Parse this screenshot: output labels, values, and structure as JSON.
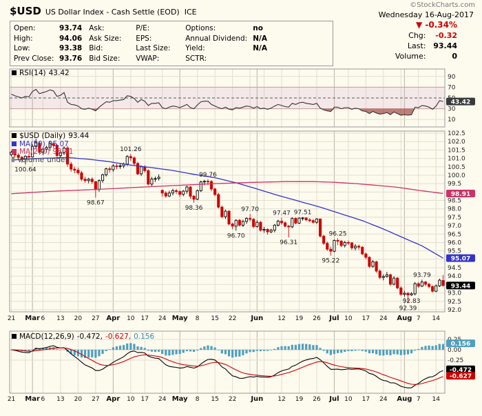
{
  "header": {
    "symbol": "$USD",
    "title": "US Dollar Index - Cash Settle (EOD)",
    "exchange": "ICE",
    "watermark": "©StockCharts.com",
    "date": "Wednesday 16-Aug-2017"
  },
  "quote": {
    "open": {
      "label": "Open:",
      "value": "93.74"
    },
    "high": {
      "label": "High:",
      "value": "94.06"
    },
    "low": {
      "label": "Low:",
      "value": "93.38"
    },
    "prev_close": {
      "label": "Prev Close:",
      "value": "93.76"
    },
    "ask": {
      "label": "Ask:",
      "value": ""
    },
    "ask_size": {
      "label": "Ask Size:",
      "value": ""
    },
    "bid": {
      "label": "Bid:",
      "value": ""
    },
    "bid_size": {
      "label": "Bid Size:",
      "value": ""
    },
    "pe": {
      "label": "P/E:",
      "value": ""
    },
    "eps": {
      "label": "EPS:",
      "value": ""
    },
    "last_size": {
      "label": "Last Size:",
      "value": ""
    },
    "vwap": {
      "label": "VWAP:",
      "value": ""
    },
    "options": {
      "label": "Options:",
      "value": "no"
    },
    "annual_dividend": {
      "label": "Annual Dividend:",
      "value": "N/A"
    },
    "yield": {
      "label": "Yield:",
      "value": "N/A"
    },
    "sctr": {
      "label": "SCTR:",
      "value": ""
    }
  },
  "summary": {
    "arrow": "▼",
    "pct": "-0.34%",
    "chg_label": "Chg:",
    "chg_value": "-0.32",
    "last_label": "Last:",
    "last_value": "93.44",
    "volume_label": "Volume:",
    "volume_value": "0"
  },
  "legends": {
    "rsi": {
      "label": "RSI(14)",
      "value": "43.42"
    },
    "main": [
      {
        "label": "$USD (Daily)",
        "value": "93.44"
      },
      {
        "label": "MA(50)",
        "value": "95.07"
      },
      {
        "label": "MA(200)",
        "value": "98.91"
      },
      {
        "label": "Volume",
        "value": "undef"
      }
    ],
    "macd": {
      "label": "MACD(12,26,9)",
      "v1": "-0.472,",
      "v2": "-0.627,",
      "v3": "0.156"
    }
  },
  "colors": {
    "background": "#fdfaee",
    "grid": "#e2dfd0",
    "grid_month": "#b9b4a3",
    "border": "#999999",
    "up": "#000000",
    "down": "#cc0000",
    "ma50": "#3333cc",
    "ma200": "#cc3366",
    "rsi_line": "#333333",
    "rsi_band": "rgba(204,153,204,0.18)",
    "rsi_band_edge": "#cc9999",
    "rsi_oversold_fill": "rgba(139,26,26,0.55)",
    "macd_hist": "#4e9fc0",
    "macd_line": "#000000",
    "macd_signal": "#cc0000",
    "axis_text": "#222222",
    "box_text": "#ffffff",
    "neg": "#cc0000"
  },
  "chart_data": {
    "type": "candlestick",
    "symbol": "$USD",
    "frequency": "Daily",
    "last_close": 93.44,
    "price_axis": {
      "min": 92.0,
      "max": 102.5,
      "step": 0.5
    },
    "x_ticks": [
      {
        "i": 0,
        "l": "21"
      },
      {
        "i": 4,
        "l": ""
      },
      {
        "i": 6,
        "l": "Mar",
        "m": 1
      },
      {
        "i": 9,
        "l": "6"
      },
      {
        "i": 14,
        "l": "13"
      },
      {
        "i": 19,
        "l": "20"
      },
      {
        "i": 24,
        "l": "27"
      },
      {
        "i": 29,
        "l": "Apr",
        "m": 1
      },
      {
        "i": 34,
        "l": "10"
      },
      {
        "i": 38,
        "l": "17"
      },
      {
        "i": 43,
        "l": "24"
      },
      {
        "i": 48,
        "l": "May",
        "m": 1
      },
      {
        "i": 53,
        "l": "8"
      },
      {
        "i": 58,
        "l": "15"
      },
      {
        "i": 63,
        "l": "22"
      },
      {
        "i": 68,
        "l": ""
      },
      {
        "i": 70,
        "l": "Jun",
        "m": 1
      },
      {
        "i": 72,
        "l": ""
      },
      {
        "i": 77,
        "l": "12"
      },
      {
        "i": 82,
        "l": "19"
      },
      {
        "i": 87,
        "l": "26"
      },
      {
        "i": 92,
        "l": "Jul",
        "m": 1
      },
      {
        "i": 96,
        "l": "10"
      },
      {
        "i": 101,
        "l": "17"
      },
      {
        "i": 106,
        "l": "24"
      },
      {
        "i": 111,
        "l": ""
      },
      {
        "i": 112,
        "l": "Aug",
        "m": 1
      },
      {
        "i": 116,
        "l": "7"
      },
      {
        "i": 121,
        "l": "14"
      }
    ],
    "candles": [
      [
        101.22,
        101.45,
        101.12,
        101.37
      ],
      [
        101.37,
        101.44,
        101.05,
        101.2
      ],
      [
        101.2,
        101.33,
        100.92,
        101.06
      ],
      [
        101.06,
        101.14,
        100.75,
        100.98
      ],
      [
        100.98,
        101.2,
        100.64,
        101.12
      ],
      [
        101.12,
        101.3,
        100.86,
        101.09
      ],
      [
        101.09,
        101.85,
        101.05,
        101.71
      ],
      [
        101.71,
        102.17,
        101.55,
        101.97
      ],
      [
        101.9,
        102.0,
        101.22,
        101.37
      ],
      [
        101.37,
        101.65,
        101.18,
        101.55
      ],
      [
        101.55,
        101.75,
        101.35,
        101.65
      ],
      [
        101.65,
        102.0,
        101.45,
        101.87
      ],
      [
        101.87,
        101.95,
        101.6,
        101.77
      ],
      [
        101.77,
        101.85,
        100.95,
        101.17
      ],
      [
        101.17,
        101.45,
        101.05,
        101.35
      ],
      [
        101.35,
        101.72,
        101.2,
        101.62
      ],
      [
        101.62,
        101.75,
        100.5,
        100.66
      ],
      [
        100.66,
        100.8,
        100.2,
        100.36
      ],
      [
        100.36,
        100.5,
        100.12,
        100.3
      ],
      [
        100.3,
        100.45,
        100.02,
        100.14
      ],
      [
        100.14,
        100.25,
        99.65,
        99.76
      ],
      [
        99.76,
        99.92,
        99.55,
        99.68
      ],
      [
        99.68,
        99.85,
        99.52,
        99.76
      ],
      [
        99.76,
        99.88,
        99.48,
        99.62
      ],
      [
        99.62,
        99.65,
        98.67,
        99.15
      ],
      [
        99.15,
        99.75,
        99.02,
        99.68
      ],
      [
        99.68,
        100.1,
        99.55,
        100.02
      ],
      [
        100.02,
        100.45,
        99.92,
        100.38
      ],
      [
        100.38,
        100.5,
        100.15,
        100.33
      ],
      [
        100.33,
        100.65,
        100.2,
        100.55
      ],
      [
        100.55,
        100.68,
        100.35,
        100.52
      ],
      [
        100.52,
        100.72,
        100.38,
        100.56
      ],
      [
        100.56,
        100.75,
        100.42,
        100.66
      ],
      [
        100.66,
        101.2,
        100.55,
        101.11
      ],
      [
        101.11,
        101.26,
        100.85,
        101.03
      ],
      [
        101.03,
        101.12,
        100.55,
        100.7
      ],
      [
        100.7,
        100.8,
        100.0,
        100.08
      ],
      [
        100.08,
        100.58,
        99.95,
        100.5
      ],
      [
        100.5,
        100.6,
        100.15,
        100.27
      ],
      [
        100.27,
        100.35,
        99.4,
        99.47
      ],
      [
        99.47,
        99.9,
        99.35,
        99.77
      ],
      [
        99.77,
        99.92,
        99.6,
        99.8
      ],
      [
        99.8,
        100.05,
        99.68,
        99.88
      ],
      [
        99.1,
        99.15,
        98.72,
        98.94
      ],
      [
        98.94,
        99.05,
        98.66,
        98.76
      ],
      [
        98.76,
        99.08,
        98.7,
        98.94
      ],
      [
        98.94,
        99.2,
        98.8,
        99.08
      ],
      [
        99.08,
        99.18,
        98.88,
        99.03
      ],
      [
        99.03,
        99.1,
        98.72,
        98.86
      ],
      [
        98.86,
        99.12,
        98.75,
        99.05
      ],
      [
        99.05,
        99.38,
        98.9,
        99.3
      ],
      [
        99.3,
        99.35,
        98.6,
        98.75
      ],
      [
        98.75,
        98.82,
        98.36,
        98.57
      ],
      [
        98.57,
        99.15,
        98.52,
        99.08
      ],
      [
        99.08,
        99.68,
        99.0,
        99.6
      ],
      [
        99.6,
        99.72,
        99.4,
        99.64
      ],
      [
        99.64,
        99.76,
        99.42,
        99.63
      ],
      [
        99.63,
        99.7,
        99.05,
        99.18
      ],
      [
        99.18,
        99.25,
        98.75,
        98.85
      ],
      [
        98.85,
        98.95,
        98.02,
        98.1
      ],
      [
        98.1,
        98.2,
        97.45,
        97.53
      ],
      [
        97.53,
        97.95,
        97.4,
        97.86
      ],
      [
        97.86,
        97.92,
        97.02,
        97.1
      ],
      [
        97.1,
        97.18,
        96.78,
        96.97
      ],
      [
        96.97,
        97.38,
        96.7,
        97.32
      ],
      [
        97.32,
        97.4,
        96.95,
        97.03
      ],
      [
        97.03,
        97.35,
        96.92,
        97.25
      ],
      [
        97.25,
        97.5,
        97.1,
        97.43
      ],
      [
        97.43,
        97.7,
        97.25,
        97.38
      ],
      [
        97.38,
        97.45,
        96.85,
        96.95
      ],
      [
        96.95,
        97.32,
        96.88,
        97.2
      ],
      [
        97.2,
        97.28,
        96.65,
        96.73
      ],
      [
        96.73,
        96.92,
        96.58,
        96.78
      ],
      [
        96.78,
        96.85,
        96.46,
        96.63
      ],
      [
        96.63,
        96.82,
        96.55,
        96.73
      ],
      [
        96.73,
        97.1,
        96.6,
        97.03
      ],
      [
        97.03,
        97.35,
        96.95,
        97.27
      ],
      [
        97.27,
        97.47,
        97.05,
        97.17
      ],
      [
        97.17,
        97.25,
        96.9,
        96.97
      ],
      [
        96.97,
        97.05,
        96.31,
        96.93
      ],
      [
        96.93,
        97.5,
        96.85,
        97.43
      ],
      [
        97.43,
        97.5,
        97.08,
        97.15
      ],
      [
        97.15,
        97.5,
        97.1,
        97.45
      ],
      [
        97.45,
        97.51,
        97.3,
        97.46
      ],
      [
        97.46,
        97.5,
        97.25,
        97.35
      ],
      [
        97.35,
        97.45,
        97.2,
        97.3
      ],
      [
        97.3,
        97.4,
        97.12,
        97.2
      ],
      [
        97.2,
        97.45,
        97.1,
        97.4
      ],
      [
        97.4,
        97.42,
        96.3,
        96.38
      ],
      [
        96.38,
        96.45,
        95.85,
        95.95
      ],
      [
        95.95,
        96.05,
        95.5,
        95.6
      ],
      [
        95.6,
        95.75,
        95.22,
        95.48
      ],
      [
        95.48,
        96.18,
        95.42,
        96.12
      ],
      [
        96.12,
        96.25,
        95.85,
        96.08
      ],
      [
        96.08,
        96.15,
        95.72,
        95.82
      ],
      [
        95.82,
        96.1,
        95.7,
        96.0
      ],
      [
        96.0,
        96.12,
        95.85,
        95.98
      ],
      [
        95.98,
        96.02,
        95.55,
        95.68
      ],
      [
        95.68,
        95.9,
        95.52,
        95.78
      ],
      [
        95.78,
        95.88,
        95.55,
        95.72
      ],
      [
        95.72,
        95.78,
        95.25,
        95.32
      ],
      [
        95.32,
        95.4,
        95.0,
        95.12
      ],
      [
        95.12,
        95.18,
        94.48,
        94.58
      ],
      [
        94.58,
        94.95,
        94.5,
        94.85
      ],
      [
        94.85,
        94.92,
        94.2,
        94.3
      ],
      [
        94.3,
        94.4,
        93.82,
        93.92
      ],
      [
        93.92,
        94.1,
        93.75,
        93.98
      ],
      [
        93.98,
        94.25,
        93.9,
        94.08
      ],
      [
        94.08,
        94.15,
        93.42,
        93.52
      ],
      [
        93.52,
        94.0,
        93.45,
        93.88
      ],
      [
        93.88,
        93.95,
        93.22,
        93.3
      ],
      [
        93.3,
        93.4,
        92.82,
        92.92
      ],
      [
        92.92,
        93.12,
        92.78,
        92.98
      ],
      [
        92.98,
        93.05,
        92.39,
        92.88
      ],
      [
        92.88,
        93.05,
        92.83,
        92.95
      ],
      [
        92.95,
        93.65,
        92.85,
        93.55
      ],
      [
        93.55,
        93.65,
        93.3,
        93.4
      ],
      [
        93.4,
        93.79,
        93.35,
        93.65
      ],
      [
        93.65,
        93.72,
        93.4,
        93.52
      ],
      [
        93.52,
        93.6,
        93.28,
        93.38
      ],
      [
        93.38,
        93.45,
        93.02,
        93.1
      ],
      [
        93.1,
        93.5,
        93.05,
        93.42
      ],
      [
        93.42,
        93.85,
        93.35,
        93.76
      ],
      [
        93.74,
        94.06,
        93.38,
        93.44
      ]
    ],
    "ma50": {
      "label": "MA(50)",
      "last": 95.07,
      "points": [
        [
          0,
          100.9
        ],
        [
          8,
          101.0
        ],
        [
          16,
          101.05
        ],
        [
          22,
          100.95
        ],
        [
          28,
          100.8
        ],
        [
          34,
          100.6
        ],
        [
          40,
          100.45
        ],
        [
          46,
          100.28
        ],
        [
          52,
          100.05
        ],
        [
          58,
          99.85
        ],
        [
          64,
          99.55
        ],
        [
          70,
          99.18
        ],
        [
          76,
          98.8
        ],
        [
          82,
          98.45
        ],
        [
          88,
          98.1
        ],
        [
          94,
          97.7
        ],
        [
          100,
          97.3
        ],
        [
          106,
          96.8
        ],
        [
          112,
          96.25
        ],
        [
          117,
          95.8
        ],
        [
          123,
          95.07
        ]
      ]
    },
    "ma200": {
      "label": "MA(200)",
      "last": 98.91,
      "points": [
        [
          0,
          98.9
        ],
        [
          12,
          99.05
        ],
        [
          24,
          99.15
        ],
        [
          36,
          99.28
        ],
        [
          48,
          99.4
        ],
        [
          58,
          99.5
        ],
        [
          68,
          99.57
        ],
        [
          78,
          99.62
        ],
        [
          86,
          99.62
        ],
        [
          92,
          99.58
        ],
        [
          98,
          99.5
        ],
        [
          104,
          99.4
        ],
        [
          110,
          99.28
        ],
        [
          116,
          99.1
        ],
        [
          123,
          98.91
        ]
      ]
    },
    "annotations": [
      {
        "i": 4,
        "v": 100.64,
        "t": "100.64",
        "p": "b"
      },
      {
        "i": 24,
        "v": 98.67,
        "t": "98.67",
        "p": "b"
      },
      {
        "i": 34,
        "v": 101.26,
        "t": "101.26",
        "p": "a"
      },
      {
        "i": 52,
        "v": 98.36,
        "t": "98.36",
        "p": "b"
      },
      {
        "i": 56,
        "v": 99.76,
        "t": "99.76",
        "p": "a"
      },
      {
        "i": 64,
        "v": 96.7,
        "t": "96.70",
        "p": "b"
      },
      {
        "i": 68,
        "v": 97.7,
        "t": "97.70",
        "p": "a"
      },
      {
        "i": 77,
        "v": 97.47,
        "t": "97.47",
        "p": "a"
      },
      {
        "i": 79,
        "v": 96.31,
        "t": "96.31",
        "p": "b"
      },
      {
        "i": 83,
        "v": 97.51,
        "t": "97.51",
        "p": "a"
      },
      {
        "i": 91,
        "v": 95.22,
        "t": "95.22",
        "p": "b"
      },
      {
        "i": 93,
        "v": 96.25,
        "t": "96.25",
        "p": "a"
      },
      {
        "i": 113,
        "v": 92.39,
        "t": "92.39",
        "p": "b"
      },
      {
        "i": 114,
        "v": 92.83,
        "t": "92.83",
        "p": "b"
      },
      {
        "i": 117,
        "v": 93.79,
        "t": "93.79",
        "p": "a"
      }
    ],
    "rsi": {
      "label": "RSI(14)",
      "last": 43.42,
      "axis": [
        90,
        70,
        50,
        30,
        10
      ],
      "band": [
        30,
        70
      ],
      "values": [
        57,
        54,
        52,
        50,
        53,
        52,
        62,
        66,
        58,
        60,
        62,
        65,
        63,
        53,
        55,
        60,
        42,
        38,
        37,
        35,
        30,
        29,
        31,
        29,
        26,
        33,
        38,
        43,
        42,
        45,
        45,
        46,
        47,
        54,
        53,
        49,
        42,
        47,
        44,
        36,
        40,
        40,
        41,
        32,
        30,
        33,
        35,
        34,
        32,
        35,
        38,
        32,
        30,
        37,
        43,
        44,
        44,
        38,
        35,
        32,
        30,
        33,
        29,
        28,
        32,
        31,
        33,
        35,
        34,
        31,
        34,
        30,
        31,
        29,
        31,
        35,
        38,
        36,
        34,
        33,
        40,
        38,
        41,
        42,
        40,
        39,
        38,
        40,
        31,
        28,
        26,
        25,
        33,
        33,
        30,
        32,
        32,
        29,
        31,
        30,
        26,
        25,
        21,
        25,
        22,
        20,
        21,
        23,
        19,
        24,
        21,
        18,
        19,
        18,
        19,
        33,
        32,
        36,
        35,
        33,
        29,
        35,
        45,
        43.42
      ]
    },
    "macd": {
      "label": "MACD(12,26,9)",
      "macd_last": -0.472,
      "signal_last": -0.627,
      "hist_last": 0.156,
      "axis_ticks": [
        0.25,
        0,
        -0.25
      ],
      "range": {
        "min": -1.05,
        "max": 0.45
      }
    },
    "volume": {
      "label": "Volume",
      "value": "undef"
    }
  }
}
